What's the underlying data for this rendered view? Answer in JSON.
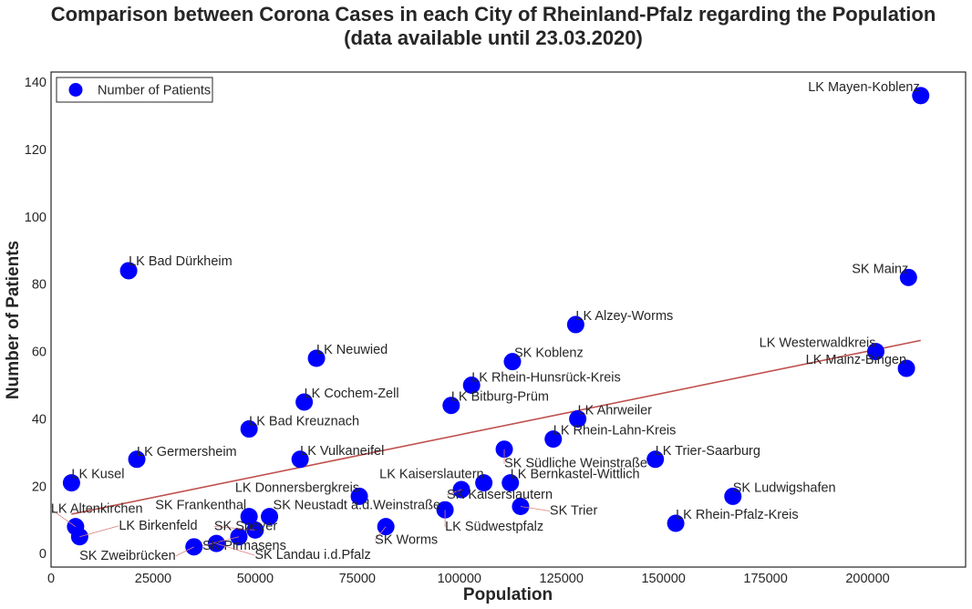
{
  "chart_data": {
    "type": "scatter",
    "title": "Comparison between Corona Cases in each City of Rheinland-Pfalz regarding the Population",
    "subtitle": "(data available until 23.03.2020)",
    "xlabel": "Population",
    "ylabel": "Number of Patients",
    "xlim": [
      0,
      224000
    ],
    "ylim": [
      -4,
      143
    ],
    "xticks": [
      0,
      25000,
      50000,
      75000,
      100000,
      125000,
      150000,
      175000,
      200000
    ],
    "xtick_labels": [
      "0",
      "25000",
      "50000",
      "75000",
      "100000",
      "125000",
      "150000",
      "175000",
      "200000"
    ],
    "yticks": [
      0,
      20,
      40,
      60,
      80,
      100,
      120,
      140
    ],
    "ytick_labels": [
      "0",
      "20",
      "40",
      "60",
      "80",
      "100",
      "120",
      "140"
    ],
    "grid": false,
    "legend": {
      "position": "top-left",
      "entries": [
        "Number of Patients"
      ]
    },
    "marker_color": "#0000ff",
    "trendline_color": "#c0504d",
    "trendline": {
      "x": [
        5000,
        213000
      ],
      "y": [
        11.7,
        63.3
      ]
    },
    "series": [
      {
        "name": "Number of Patients",
        "points": [
          {
            "label": "LK Mayen-Koblenz",
            "x": 213000,
            "y": 136,
            "anchor": "end",
            "dx": -1,
            "dy": -5
          },
          {
            "label": "LK Bad Dürkheim",
            "x": 19000,
            "y": 84,
            "anchor": "start",
            "dx": 0,
            "dy": -6
          },
          {
            "label": "SK Mainz",
            "x": 210000,
            "y": 82,
            "anchor": "end",
            "dx": 0,
            "dy": -5
          },
          {
            "label": "LK Alzey-Worms",
            "x": 128500,
            "y": 68,
            "anchor": "start",
            "dx": 0,
            "dy": -5
          },
          {
            "label": "LK Westerwaldkreis",
            "x": 202000,
            "y": 60,
            "anchor": "end",
            "dx": 0,
            "dy": -5
          },
          {
            "label": "LK Neuwied",
            "x": 65000,
            "y": 58,
            "anchor": "start",
            "dx": 0,
            "dy": -5
          },
          {
            "label": "SK Koblenz",
            "x": 113000,
            "y": 57,
            "anchor": "start",
            "dx": 2,
            "dy": -5
          },
          {
            "label": "LK Mainz-Bingen",
            "x": 209500,
            "y": 55,
            "anchor": "end",
            "dx": 0,
            "dy": -5
          },
          {
            "label": "LK Rhein-Hunsrück-Kreis",
            "x": 103000,
            "y": 50,
            "anchor": "start",
            "dx": 0,
            "dy": -4
          },
          {
            "label": "LK Cochem-Zell",
            "x": 62000,
            "y": 45,
            "anchor": "start",
            "dx": 0,
            "dy": -5
          },
          {
            "label": "LK Bitburg-Prüm",
            "x": 98000,
            "y": 44,
            "anchor": "start",
            "dx": 0,
            "dy": -5
          },
          {
            "label": "LK Ahrweiler",
            "x": 129000,
            "y": 40,
            "anchor": "start",
            "dx": 0,
            "dy": -5
          },
          {
            "label": "LK Bad Kreuznach",
            "x": 48500,
            "y": 37,
            "anchor": "start",
            "dx": 0,
            "dy": -4
          },
          {
            "label": "LK Rhein-Lahn-Kreis",
            "x": 123000,
            "y": 34,
            "anchor": "start",
            "dx": 0,
            "dy": -5
          },
          {
            "label": "SK Südliche Weinstraße",
            "x": 111000,
            "y": 31,
            "anchor": "start",
            "dx": 0,
            "dy": 20
          },
          {
            "label": "LK Germersheim",
            "x": 21000,
            "y": 28,
            "anchor": "start",
            "dx": 0,
            "dy": -4
          },
          {
            "label": "LK Vulkaneifel",
            "x": 61000,
            "y": 28,
            "anchor": "start",
            "dx": 0,
            "dy": -5
          },
          {
            "label": "LK Trier-Saarburg",
            "x": 148000,
            "y": 28,
            "anchor": "start",
            "dx": 0,
            "dy": -5
          },
          {
            "label": "LK Kusel",
            "x": 5000,
            "y": 21,
            "anchor": "start",
            "dx": 0,
            "dy": -5
          },
          {
            "label": "LK Kaiserslautern",
            "x": 106000,
            "y": 21,
            "anchor": "end",
            "dx": 0,
            "dy": -5
          },
          {
            "label": "LK Bernkastel-Wittlich",
            "x": 112500,
            "y": 21,
            "anchor": "start",
            "dx": 0,
            "dy": -5
          },
          {
            "label": "SK Kaiserslautern",
            "x": 100500,
            "y": 19,
            "anchor": "start",
            "dx": -16,
            "dy": 10
          },
          {
            "label": "LK Donnersbergkreis",
            "x": 75500,
            "y": 17,
            "anchor": "end",
            "dx": 0,
            "dy": -5
          },
          {
            "label": "SK Ludwigshafen",
            "x": 167000,
            "y": 17,
            "anchor": "start",
            "dx": 0,
            "dy": -5
          },
          {
            "label": "SK Trier",
            "x": 115000,
            "y": 14,
            "anchor": "start",
            "dx": 32,
            "dy": 9
          },
          {
            "label": "LK Südwestpfalz",
            "x": 96500,
            "y": 13,
            "anchor": "start",
            "dx": 0,
            "dy": 23
          },
          {
            "label": "SK Frankenthal",
            "x": 48500,
            "y": 11,
            "anchor": "end",
            "dx": -3,
            "dy": -8
          },
          {
            "label": "SK Neustadt a.d.Weinstraße",
            "x": 53500,
            "y": 11,
            "anchor": "start",
            "dx": 4,
            "dy": -8
          },
          {
            "label": "LK Rhein-Pfalz-Kreis",
            "x": 153000,
            "y": 9,
            "anchor": "start",
            "dx": 0,
            "dy": -5
          },
          {
            "label": "LK Altenkirchen",
            "x": 6000,
            "y": 8,
            "anchor": "start",
            "dx": -27,
            "dy": -15
          },
          {
            "label": "SK Worms",
            "x": 82000,
            "y": 8,
            "anchor": "start",
            "dx": -12,
            "dy": 19
          },
          {
            "label": "SK Speyer",
            "x": 50000,
            "y": 7,
            "anchor": "start",
            "dx": -45,
            "dy": 0
          },
          {
            "label": "LK Birkenfeld",
            "x": 7000,
            "y": 5,
            "anchor": "start",
            "dx": 43,
            "dy": -8
          },
          {
            "label": "SK Pirmasens",
            "x": 46000,
            "y": 5,
            "anchor": "start",
            "dx": -40,
            "dy": 14
          },
          {
            "label": "SK Landau i.d.Pfalz",
            "x": 40500,
            "y": 3,
            "anchor": "start",
            "dx": 42,
            "dy": 17
          },
          {
            "label": "SK Zweibrücken",
            "x": 35000,
            "y": 2,
            "anchor": "end",
            "dx": -20,
            "dy": 14
          }
        ]
      }
    ]
  }
}
